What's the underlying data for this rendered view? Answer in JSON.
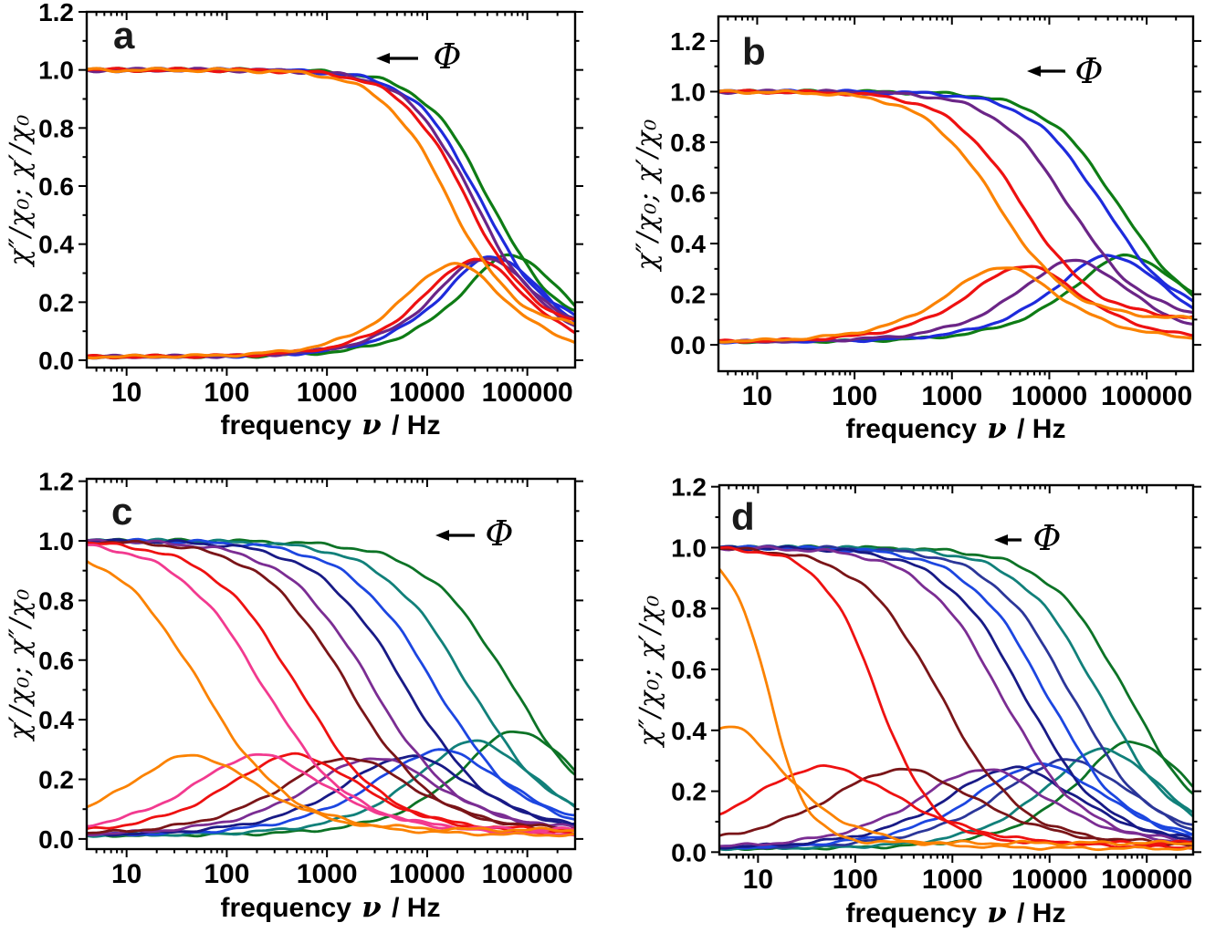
{
  "figure": {
    "description": "Four-panel AC magnetic susceptibility spectra: normalized in-phase and out-of-phase susceptibility versus frequency",
    "panels": [
      "a",
      "b",
      "c",
      "d"
    ]
  },
  "chart_data": [
    {
      "id": "a",
      "letter": "a",
      "type": "line",
      "x_scale": "log",
      "xlim": [
        4,
        300000
      ],
      "ylim": [
        -0.0251,
        1.2
      ],
      "xticks": [
        10,
        100,
        1000,
        10000,
        100000
      ],
      "xtick_labels": [
        "10",
        "100",
        "1000",
        "10000",
        "100000"
      ],
      "yticks": [
        0.0,
        0.2,
        0.4,
        0.6,
        0.8,
        1.0,
        1.2
      ],
      "ytick_labels": [
        "0.0",
        "0.2",
        "0.4",
        "0.6",
        "0.8",
        "1.0",
        "1.2"
      ],
      "xlabel_prefix": "frequency ",
      "xlabel_symbol": "ν",
      "xlabel_suffix": " / Hz",
      "ylabel": "χ″/χ₀; χ′/χ₀",
      "annotation": {
        "label": "Φ",
        "arrow": "points-left"
      },
      "curve_types": [
        "chi_prime_sigmoid_from_1",
        "chi_double_prime_peak"
      ],
      "model": {
        "p": 1.3,
        "q": 0.9,
        "r": 0.105,
        "baseline": 0.012
      },
      "series": [
        {
          "name": "green",
          "color": "#0E7C15",
          "chi1_mid_hz": 42000,
          "chi2_peak_hz": 70000,
          "chi2_peak": 0.35
        },
        {
          "name": "blue",
          "color": "#1E2BDC",
          "chi1_mid_hz": 34000,
          "chi2_peak_hz": 46000,
          "chi2_peak": 0.345
        },
        {
          "name": "purple",
          "color": "#6B2587",
          "chi1_mid_hz": 29000,
          "chi2_peak_hz": 38000,
          "chi2_peak": 0.34
        },
        {
          "name": "red",
          "color": "#EE1111",
          "chi1_mid_hz": 25000,
          "chi2_peak_hz": 30000,
          "chi2_peak": 0.335
        },
        {
          "name": "orange",
          "color": "#FB8200",
          "chi1_mid_hz": 16500,
          "chi2_peak_hz": 18500,
          "chi2_peak": 0.32
        }
      ]
    },
    {
      "id": "b",
      "letter": "b",
      "type": "line",
      "x_scale": "log",
      "xlim": [
        4,
        300000
      ],
      "ylim": [
        -0.104,
        1.297
      ],
      "xticks": [
        10,
        100,
        1000,
        10000,
        100000
      ],
      "xtick_labels": [
        "10",
        "100",
        "1000",
        "10000",
        "100000"
      ],
      "yticks": [
        0.0,
        0.2,
        0.4,
        0.6,
        0.8,
        1.0,
        1.2
      ],
      "ytick_labels": [
        "0.0",
        "0.2",
        "0.4",
        "0.6",
        "0.8",
        "1.0",
        "1.2"
      ],
      "xlabel_prefix": "frequency ",
      "xlabel_symbol": "ν",
      "xlabel_suffix": " / Hz",
      "ylabel": "χ″/χ₀; χ′/χ₀",
      "annotation": {
        "label": "Φ",
        "arrow": "points-left"
      },
      "curve_types": [
        "chi_prime_sigmoid_from_1",
        "chi_double_prime_peak"
      ],
      "model": {
        "p": 1.15,
        "q": 0.8,
        "r": 0.1,
        "baseline": 0.012
      },
      "series": [
        {
          "name": "green",
          "color": "#0E7C15",
          "chi1_mid_hz": 52000,
          "chi2_peak_hz": 64000,
          "chi2_peak": 0.34
        },
        {
          "name": "blue",
          "color": "#1E2BDC",
          "chi1_mid_hz": 36000,
          "chi2_peak_hz": 42000,
          "chi2_peak": 0.34
        },
        {
          "name": "purple",
          "color": "#6B2587",
          "chi1_mid_hz": 16000,
          "chi2_peak_hz": 18000,
          "chi2_peak": 0.32
        },
        {
          "name": "red",
          "color": "#EE1111",
          "chi1_mid_hz": 5300,
          "chi2_peak_hz": 5600,
          "chi2_peak": 0.3
        },
        {
          "name": "orange",
          "color": "#FB8200",
          "chi1_mid_hz": 3000,
          "chi2_peak_hz": 3300,
          "chi2_peak": 0.295
        }
      ]
    },
    {
      "id": "c",
      "letter": "c",
      "type": "line",
      "x_scale": "log",
      "xlim": [
        4,
        300000
      ],
      "ylim": [
        -0.034,
        1.208
      ],
      "xticks": [
        10,
        100,
        1000,
        10000,
        100000
      ],
      "xtick_labels": [
        "10",
        "100",
        "1000",
        "10000",
        "100000"
      ],
      "yticks": [
        0.0,
        0.2,
        0.4,
        0.6,
        0.8,
        1.0,
        1.2
      ],
      "ytick_labels": [
        "0.0",
        "0.2",
        "0.4",
        "0.6",
        "0.8",
        "1.0",
        "1.2"
      ],
      "xlabel_prefix": "frequency ",
      "xlabel_symbol": "ν",
      "xlabel_suffix": " / Hz",
      "ylabel": "χ′/χ₀; χ″/χ₀",
      "annotation": {
        "label": "Φ",
        "arrow": "points-left"
      },
      "curve_types": [
        "chi_prime_sigmoid_from_1",
        "chi_double_prime_peak"
      ],
      "model": {
        "p": 1.0,
        "q": 0.7,
        "r": 0.03,
        "baseline": 0.012
      },
      "series": [
        {
          "name": "green",
          "color": "#0C7326",
          "chi1_mid_hz": 70000,
          "chi2_peak_hz": 80000,
          "chi2_peak": 0.35,
          "q": 0.8
        },
        {
          "name": "teal",
          "color": "#11807A",
          "chi1_mid_hz": 26000,
          "chi2_peak_hz": 30000,
          "chi2_peak": 0.315,
          "q": 0.78
        },
        {
          "name": "blue",
          "color": "#1C46E0",
          "chi1_mid_hz": 12000,
          "chi2_peak_hz": 13500,
          "chi2_peak": 0.285
        },
        {
          "name": "navy",
          "color": "#181A86",
          "chi1_mid_hz": 6000,
          "chi2_peak_hz": 6500,
          "chi2_peak": 0.265
        },
        {
          "name": "purple",
          "color": "#7B2D93",
          "chi1_mid_hz": 2800,
          "chi2_peak_hz": 3000,
          "chi2_peak": 0.26
        },
        {
          "name": "maroon",
          "color": "#7A1518",
          "chi1_mid_hz": 1600,
          "chi2_peak_hz": 1600,
          "chi2_peak": 0.26
        },
        {
          "name": "red",
          "color": "#EE1111",
          "chi1_mid_hz": 500,
          "chi2_peak_hz": 470,
          "chi2_peak": 0.27
        },
        {
          "name": "pink",
          "color": "#F23A8F",
          "chi1_mid_hz": 230,
          "chi2_peak_hz": 210,
          "chi2_peak": 0.27
        },
        {
          "name": "orange",
          "color": "#FB8200",
          "chi1_mid_hz": 55,
          "chi2_peak_hz": 45,
          "chi2_peak": 0.268
        }
      ]
    },
    {
      "id": "d",
      "letter": "d",
      "type": "line",
      "x_scale": "log",
      "xlim": [
        4,
        300000
      ],
      "ylim": [
        -0.008,
        1.205
      ],
      "xticks": [
        10,
        100,
        1000,
        10000,
        100000
      ],
      "xtick_labels": [
        "10",
        "100",
        "1000",
        "10000",
        "100000"
      ],
      "yticks": [
        0.0,
        0.2,
        0.4,
        0.6,
        0.8,
        1.0,
        1.2
      ],
      "ytick_labels": [
        "0.0",
        "0.2",
        "0.4",
        "0.6",
        "0.8",
        "1.0",
        "1.2"
      ],
      "xlabel_prefix": "frequency ",
      "xlabel_symbol": "ν",
      "xlabel_suffix": " / Hz",
      "ylabel": "χ″/χ₀; χ′/χ₀",
      "annotation": {
        "label": "Φ",
        "arrow": "points-left"
      },
      "curve_types": [
        "chi_prime_sigmoid_from_1",
        "chi_double_prime_peak"
      ],
      "model": {
        "p": 1.05,
        "q": 0.68,
        "r": 0.03,
        "baseline": 0.012
      },
      "series": [
        {
          "name": "green",
          "color": "#0C7326",
          "chi1_mid_hz": 64000,
          "chi2_peak_hz": 72000,
          "chi2_peak": 0.35,
          "q": 0.8
        },
        {
          "name": "teal",
          "color": "#11807A",
          "chi1_mid_hz": 33000,
          "chi2_peak_hz": 36000,
          "chi2_peak": 0.325,
          "q": 0.78
        },
        {
          "name": "navy2",
          "color": "#2B3699",
          "chi1_mid_hz": 17000,
          "chi2_peak_hz": 15000,
          "chi2_peak": 0.29
        },
        {
          "name": "blue",
          "color": "#1C46E0",
          "chi1_mid_hz": 9500,
          "chi2_peak_hz": 8000,
          "chi2_peak": 0.275
        },
        {
          "name": "navy",
          "color": "#181A86",
          "chi1_mid_hz": 5500,
          "chi2_peak_hz": 4200,
          "chi2_peak": 0.265
        },
        {
          "name": "purple",
          "color": "#7B2D93",
          "chi1_mid_hz": 3200,
          "chi2_peak_hz": 2100,
          "chi2_peak": 0.26
        },
        {
          "name": "maroon",
          "color": "#7A1518",
          "chi1_mid_hz": 750,
          "chi2_peak_hz": 300,
          "chi2_peak": 0.26,
          "q": 0.6
        },
        {
          "name": "red",
          "color": "#EE1111",
          "chi1_mid_hz": 170,
          "chi2_peak_hz": 48,
          "chi2_peak": 0.268,
          "q": 0.6,
          "p": 1.5
        },
        {
          "name": "orange",
          "color": "#FB8200",
          "chi1_mid_hz": 13,
          "chi2_peak_hz": 5,
          "chi2_peak": 0.4,
          "q": 0.8,
          "p": 2.2
        }
      ]
    }
  ]
}
